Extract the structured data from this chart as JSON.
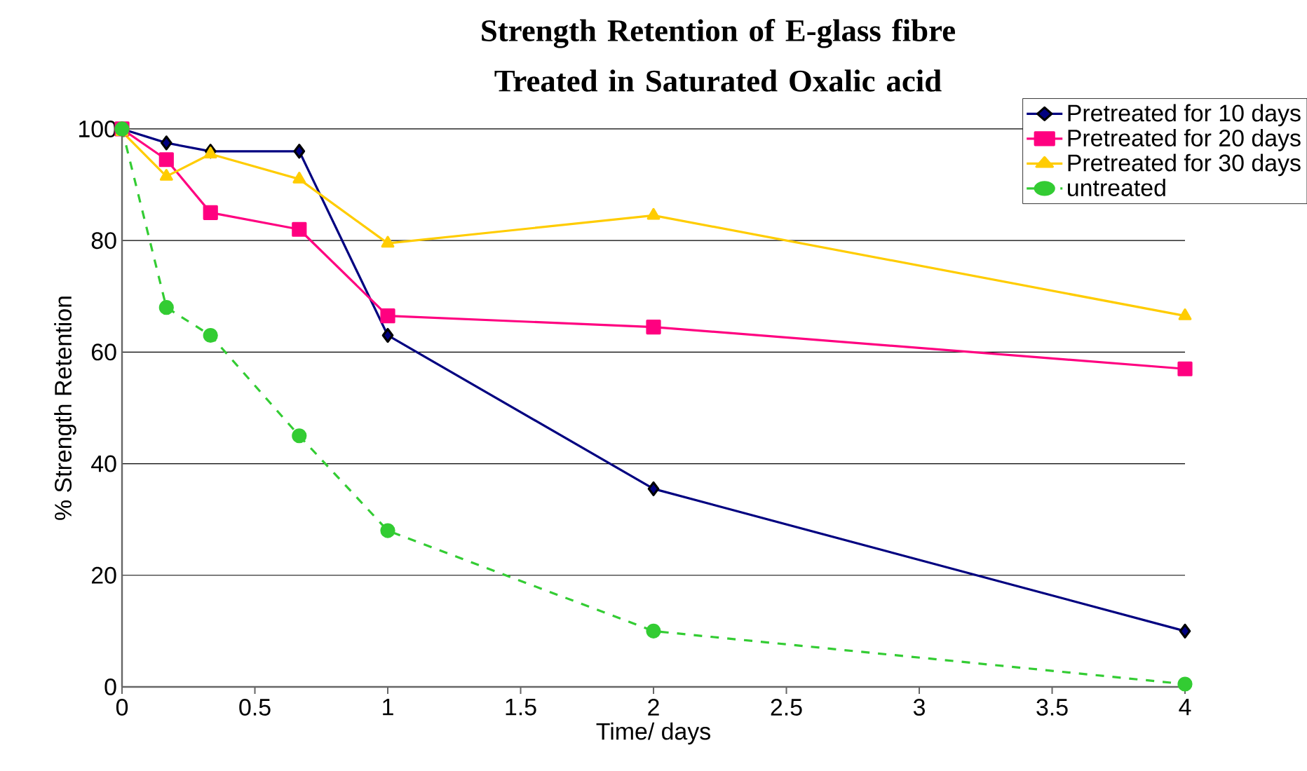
{
  "chart_data": {
    "type": "line",
    "title": "Strength Retention of E-glass fibre Treated in Saturated Oxalic acid",
    "xlabel": "Time/ days",
    "ylabel": "% Strength Retention",
    "x": [
      0,
      0.167,
      0.333,
      0.667,
      1,
      2,
      4
    ],
    "series": [
      {
        "name": "Pretreated for 10 days",
        "color": "#000080",
        "marker": "diamond",
        "line_style": "solid",
        "values": [
          100,
          97.5,
          96,
          96,
          63,
          35.5,
          10
        ]
      },
      {
        "name": "Pretreated for 20 days",
        "color": "#ff0080",
        "marker": "square",
        "line_style": "solid",
        "values": [
          100,
          94.5,
          85,
          82,
          66.5,
          64.5,
          57
        ]
      },
      {
        "name": "Pretreated for 30 days",
        "color": "#ffcc00",
        "marker": "triangle",
        "line_style": "solid",
        "values": [
          99.5,
          91.5,
          95.5,
          91,
          79.5,
          84.5,
          66.5
        ]
      },
      {
        "name": "untreated",
        "color": "#33cc33",
        "marker": "circle",
        "line_style": "dashed",
        "values": [
          100,
          68,
          63,
          45,
          28,
          10,
          0.5
        ]
      }
    ],
    "xlim": [
      0,
      4
    ],
    "xticks": [
      0,
      0.5,
      1,
      1.5,
      2,
      2.5,
      3,
      3.5,
      4
    ],
    "ylim": [
      0,
      100
    ],
    "yticks": [
      0,
      20,
      40,
      60,
      80,
      100
    ],
    "grid": "y",
    "legend": "top right"
  }
}
